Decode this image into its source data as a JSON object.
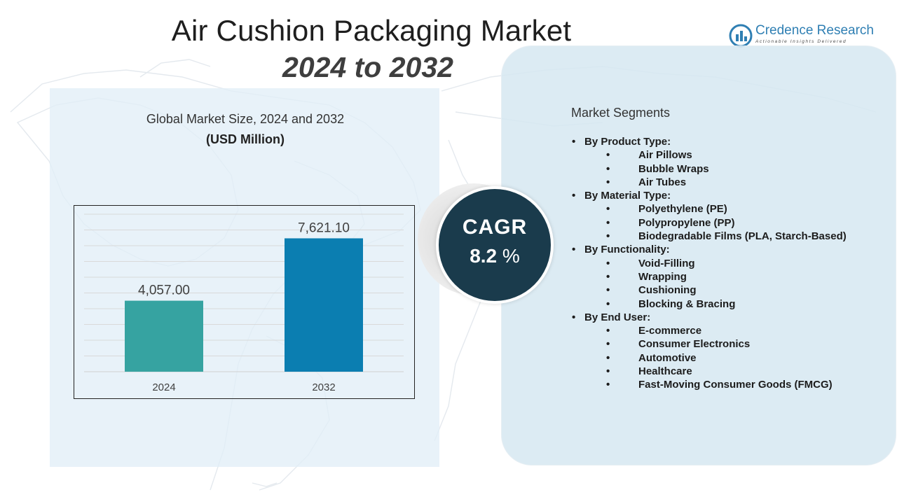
{
  "header": {
    "title": "Air Cushion Packaging Market",
    "subtitle": "2024 to 2032"
  },
  "logo": {
    "name": "Credence Research",
    "tagline": "Actionable Insights Delivered",
    "color": "#2f7fb3"
  },
  "chart_heading": "Global Market Size, 2024 and 2032",
  "chart_unit": "(USD Million)",
  "chart_data": {
    "type": "bar",
    "categories": [
      "2024",
      "2032"
    ],
    "values": [
      4057.0,
      7621.1
    ],
    "value_labels": [
      "4,057.00",
      "7,621.10"
    ],
    "colors": [
      "#36a3a1",
      "#0b7eb1"
    ],
    "ylim": [
      0,
      9000
    ],
    "grid": true,
    "title": "Global Market Size, 2024 and 2032",
    "ylabel": "(USD Million)"
  },
  "cagr": {
    "label": "CAGR",
    "value": "8.2",
    "unit": "%"
  },
  "segments": {
    "title": "Market Segments",
    "groups": [
      {
        "label": "By Product Type:",
        "items": [
          "Air Pillows",
          "Bubble Wraps",
          "Air Tubes"
        ]
      },
      {
        "label": "By Material Type:",
        "items": [
          "Polyethylene (PE)",
          "Polypropylene (PP)",
          "Biodegradable Films (PLA, Starch-Based)"
        ]
      },
      {
        "label": "By Functionality:",
        "items": [
          "Void-Filling",
          "Wrapping",
          "Cushioning",
          "Blocking & Bracing"
        ]
      },
      {
        "label": "By End User:",
        "items": [
          "E-commerce",
          "Consumer Electronics",
          "Automotive",
          "Healthcare",
          "Fast-Moving Consumer Goods (FMCG)"
        ]
      }
    ]
  }
}
